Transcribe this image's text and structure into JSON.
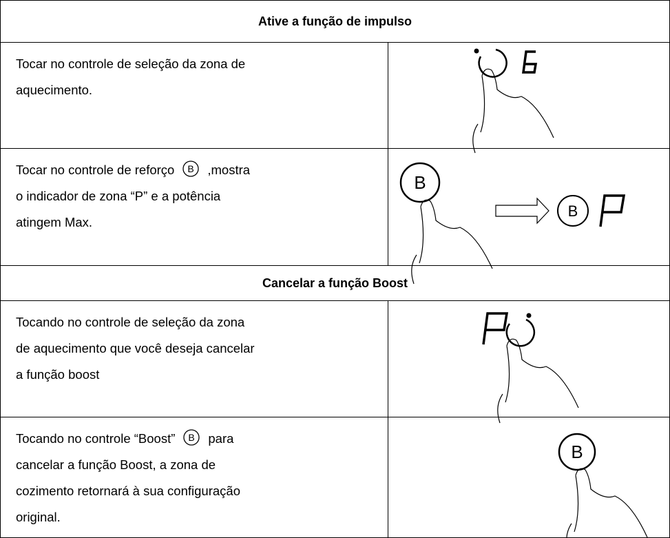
{
  "boost_symbol": "B",
  "sections": [
    {
      "title": "Ative a função de impulso",
      "rows": [
        {
          "lines": [
            [
              "Tocar no controle de seleção da zona de"
            ],
            [
              "aquecimento."
            ]
          ]
        },
        {
          "lines": [
            [
              "Tocar no controle de reforço",
              ",mostra"
            ],
            [
              "o indicador de zona “P” e a potência"
            ],
            [
              "atingem Max."
            ]
          ]
        }
      ]
    },
    {
      "title": "Cancelar a função Boost",
      "rows": [
        {
          "lines": [
            [
              "Tocando no controle de seleção da zona"
            ],
            [
              "de aquecimento que você deseja cancelar"
            ],
            [
              "a função boost"
            ]
          ]
        },
        {
          "lines": [
            [
              "Tocando no controle “Boost”",
              "para"
            ],
            [
              "cancelar a função Boost, a zona de"
            ],
            [
              "cozimento retornará à sua configuração"
            ],
            [
              "original."
            ]
          ]
        }
      ]
    }
  ]
}
